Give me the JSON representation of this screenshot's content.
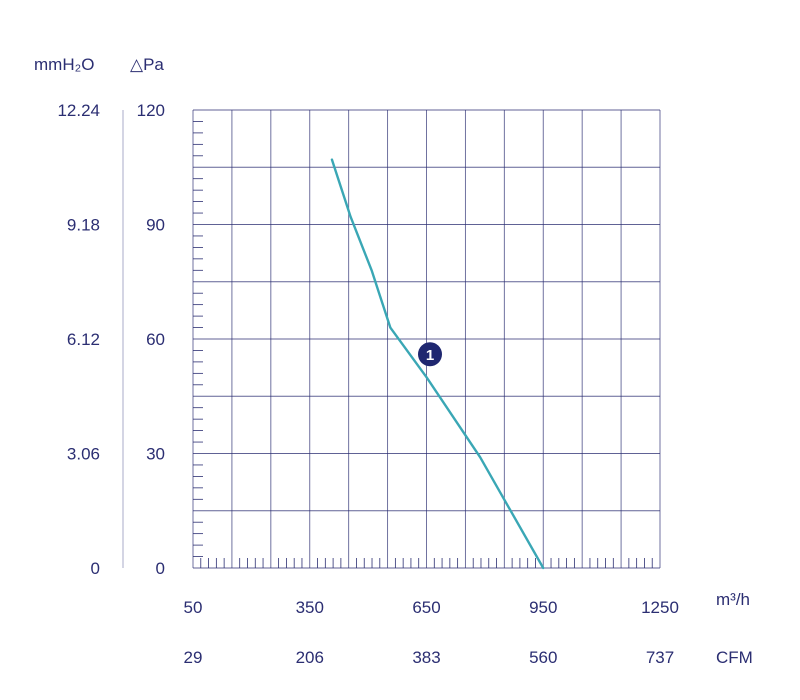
{
  "chart_data": {
    "type": "line",
    "y_axes": {
      "left_outer": {
        "unit_label": "mmH₂O",
        "ticks": [
          "12.24",
          "9.18",
          "6.12",
          "3.06",
          "0"
        ]
      },
      "left_inner": {
        "unit_label": "△Pa",
        "ticks": [
          "120",
          "90",
          "60",
          "30",
          "0"
        ],
        "ylim": [
          0,
          120
        ]
      }
    },
    "x_axes": {
      "primary": {
        "unit_label": "m³/h",
        "ticks": [
          "50",
          "350",
          "650",
          "950",
          "1250"
        ],
        "xlim": [
          50,
          1250
        ]
      },
      "secondary": {
        "unit_label": "CFM",
        "ticks": [
          "29",
          "206",
          "383",
          "560",
          "737"
        ]
      }
    },
    "grid": true,
    "series": [
      {
        "marker_label": "1",
        "color": "#3aa7b5",
        "x": [
          407,
          455,
          509,
          557,
          650,
          788,
          950
        ],
        "y": [
          107,
          92,
          78,
          63,
          50,
          29,
          0
        ],
        "marker_at": {
          "x": 659,
          "y": 56
        }
      }
    ]
  }
}
